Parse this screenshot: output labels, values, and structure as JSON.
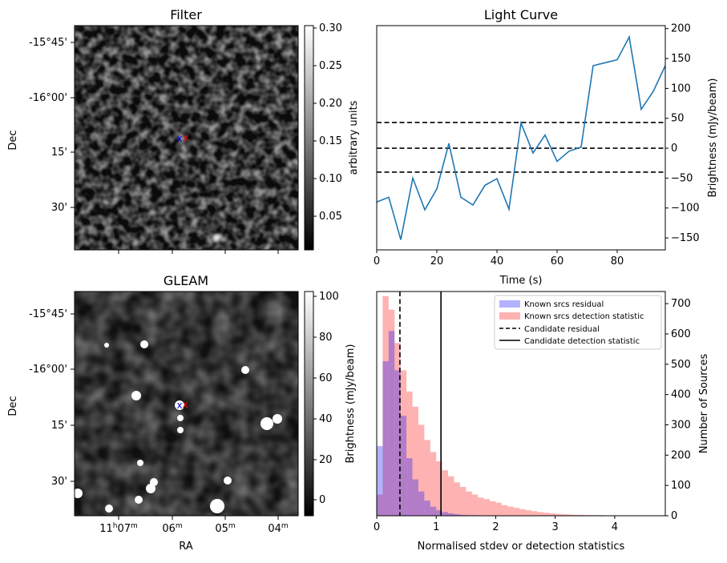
{
  "filter_panel": {
    "title": "Filter",
    "ylabel": "Dec",
    "dec_ticks": [
      "-15°45'",
      "-16°00'",
      "15'",
      "30'"
    ],
    "colorbar_label": "arbitrary units",
    "colorbar_ticks": [
      "0.30",
      "0.25",
      "0.20",
      "0.15",
      "0.10",
      "0.05"
    ],
    "markers": {
      "blue": "x",
      "red": "x"
    }
  },
  "gleam_panel": {
    "title": "GLEAM",
    "ylabel": "Dec",
    "xlabel": "RA",
    "dec_ticks": [
      "-15°45'",
      "-16°00'",
      "15'",
      "30'"
    ],
    "ra_ticks": [
      {
        "base": "11",
        "sup1": "h",
        "mid": "07",
        "sup2": "m"
      },
      {
        "base": "",
        "sup1": "",
        "mid": "06",
        "sup2": "m"
      },
      {
        "base": "",
        "sup1": "",
        "mid": "05",
        "sup2": "m"
      },
      {
        "base": "",
        "sup1": "",
        "mid": "04",
        "sup2": "m"
      }
    ],
    "colorbar_label": "Brightness (mJy/beam)",
    "colorbar_ticks": [
      "100",
      "80",
      "60",
      "40",
      "20",
      "0"
    ]
  },
  "chart_data": [
    {
      "type": "line",
      "title": "Light Curve",
      "xlabel": "Time (s)",
      "ylabel": "Brightness (mJy/beam)",
      "xlim": [
        0,
        96
      ],
      "ylim": [
        -170,
        205
      ],
      "xticks": [
        0,
        20,
        40,
        60,
        80
      ],
      "yticks": [
        -150,
        -100,
        -50,
        0,
        50,
        100,
        150,
        200
      ],
      "hlines": [
        -40,
        0,
        43
      ],
      "line_color": "#1f77b4",
      "x": [
        0,
        4,
        8,
        12,
        16,
        20,
        24,
        28,
        32,
        36,
        40,
        44,
        48,
        52,
        56,
        60,
        64,
        68,
        72,
        76,
        80,
        84,
        88,
        92,
        96
      ],
      "y": [
        -90,
        -82,
        -153,
        -50,
        -103,
        -68,
        8,
        -82,
        -95,
        -62,
        -51,
        -102,
        42,
        -8,
        22,
        -22,
        -5,
        2,
        138,
        143,
        148,
        186,
        65,
        95,
        138
      ]
    },
    {
      "type": "bar",
      "xlabel": "Normalised stdev or detection statistics",
      "ylabel": "Number of Sources",
      "xlim": [
        0,
        4.85
      ],
      "ylim": [
        0,
        740
      ],
      "xticks": [
        0,
        1,
        2,
        3,
        4
      ],
      "yticks": [
        0,
        100,
        200,
        300,
        400,
        500,
        600,
        700
      ],
      "bin_width": 0.1,
      "vlines": [
        {
          "x": 0.39,
          "style": "dashed"
        },
        {
          "x": 1.08,
          "style": "solid"
        }
      ],
      "series": [
        {
          "name": "Known srcs residual",
          "color": "#0000ff",
          "values": [
            230,
            510,
            610,
            480,
            330,
            190,
            120,
            80,
            50,
            30,
            18,
            12,
            8,
            5,
            3,
            2,
            2,
            1,
            1
          ]
        },
        {
          "name": "Known srcs detection statistic",
          "color": "#ff0000",
          "values": [
            70,
            725,
            680,
            570,
            480,
            410,
            360,
            300,
            250,
            210,
            180,
            150,
            130,
            110,
            95,
            80,
            70,
            60,
            55,
            48,
            43,
            35,
            30,
            26,
            22,
            18,
            15,
            12,
            10,
            8,
            6,
            5,
            4,
            3,
            3,
            2,
            2,
            2,
            1,
            1,
            1,
            1,
            1,
            1,
            1,
            1,
            1,
            1
          ]
        }
      ],
      "legend_entries": [
        "Known srcs residual",
        "Known srcs detection statistic",
        "Candidate residual",
        "Candidate detection statistic"
      ],
      "legend_position": "top-right"
    }
  ]
}
